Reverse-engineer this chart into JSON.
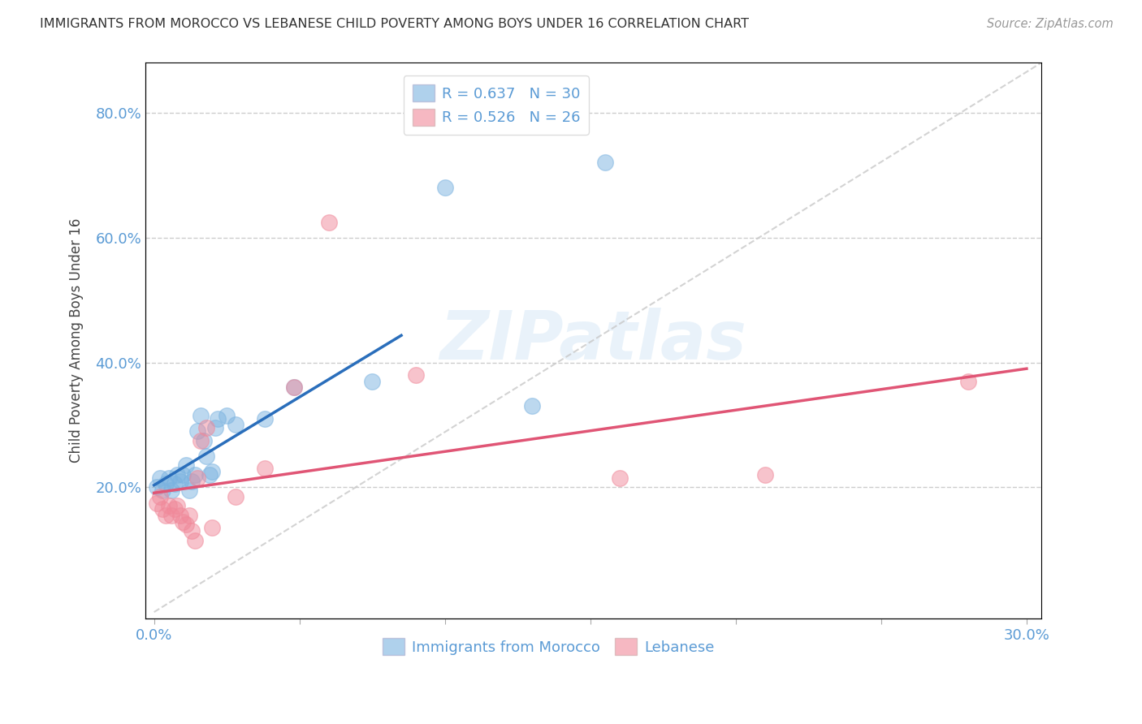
{
  "title": "IMMIGRANTS FROM MOROCCO VS LEBANESE CHILD POVERTY AMONG BOYS UNDER 16 CORRELATION CHART",
  "source": "Source: ZipAtlas.com",
  "ylabel": "Child Poverty Among Boys Under 16",
  "R1": 0.637,
  "N1": 30,
  "R2": 0.526,
  "N2": 26,
  "color1": "#7bb3e0",
  "color2": "#f0899a",
  "trend_color1": "#2a6ebb",
  "trend_color2": "#e05575",
  "diagonal_color": "#c8c8c8",
  "background_color": "#ffffff",
  "grid_color": "#cccccc",
  "axis_label_color": "#5b9bd5",
  "title_color": "#333333",
  "legend1_label": "Immigrants from Morocco",
  "legend2_label": "Lebanese",
  "morocco_x": [
    0.001,
    0.002,
    0.003,
    0.004,
    0.005,
    0.006,
    0.007,
    0.008,
    0.009,
    0.01,
    0.011,
    0.012,
    0.013,
    0.014,
    0.015,
    0.016,
    0.017,
    0.018,
    0.019,
    0.02,
    0.021,
    0.022,
    0.025,
    0.028,
    0.038,
    0.048,
    0.075,
    0.1,
    0.13,
    0.155
  ],
  "morocco_y": [
    0.2,
    0.215,
    0.195,
    0.205,
    0.215,
    0.195,
    0.205,
    0.22,
    0.21,
    0.22,
    0.235,
    0.195,
    0.21,
    0.22,
    0.29,
    0.315,
    0.275,
    0.25,
    0.22,
    0.225,
    0.295,
    0.31,
    0.315,
    0.3,
    0.31,
    0.36,
    0.37,
    0.68,
    0.33,
    0.72
  ],
  "lebanese_x": [
    0.001,
    0.002,
    0.003,
    0.004,
    0.005,
    0.006,
    0.007,
    0.008,
    0.009,
    0.01,
    0.011,
    0.012,
    0.013,
    0.014,
    0.015,
    0.016,
    0.018,
    0.02,
    0.028,
    0.038,
    0.048,
    0.06,
    0.09,
    0.16,
    0.21,
    0.28
  ],
  "lebanese_y": [
    0.175,
    0.185,
    0.165,
    0.155,
    0.17,
    0.155,
    0.165,
    0.17,
    0.155,
    0.145,
    0.14,
    0.155,
    0.13,
    0.115,
    0.215,
    0.275,
    0.295,
    0.135,
    0.185,
    0.23,
    0.36,
    0.625,
    0.38,
    0.215,
    0.22,
    0.37
  ],
  "xlim": [
    -0.003,
    0.305
  ],
  "ylim": [
    -0.01,
    0.88
  ],
  "xticks": [
    0.0,
    0.05,
    0.1,
    0.15,
    0.2,
    0.25,
    0.3
  ],
  "yticks": [
    0.0,
    0.2,
    0.4,
    0.6,
    0.8
  ]
}
